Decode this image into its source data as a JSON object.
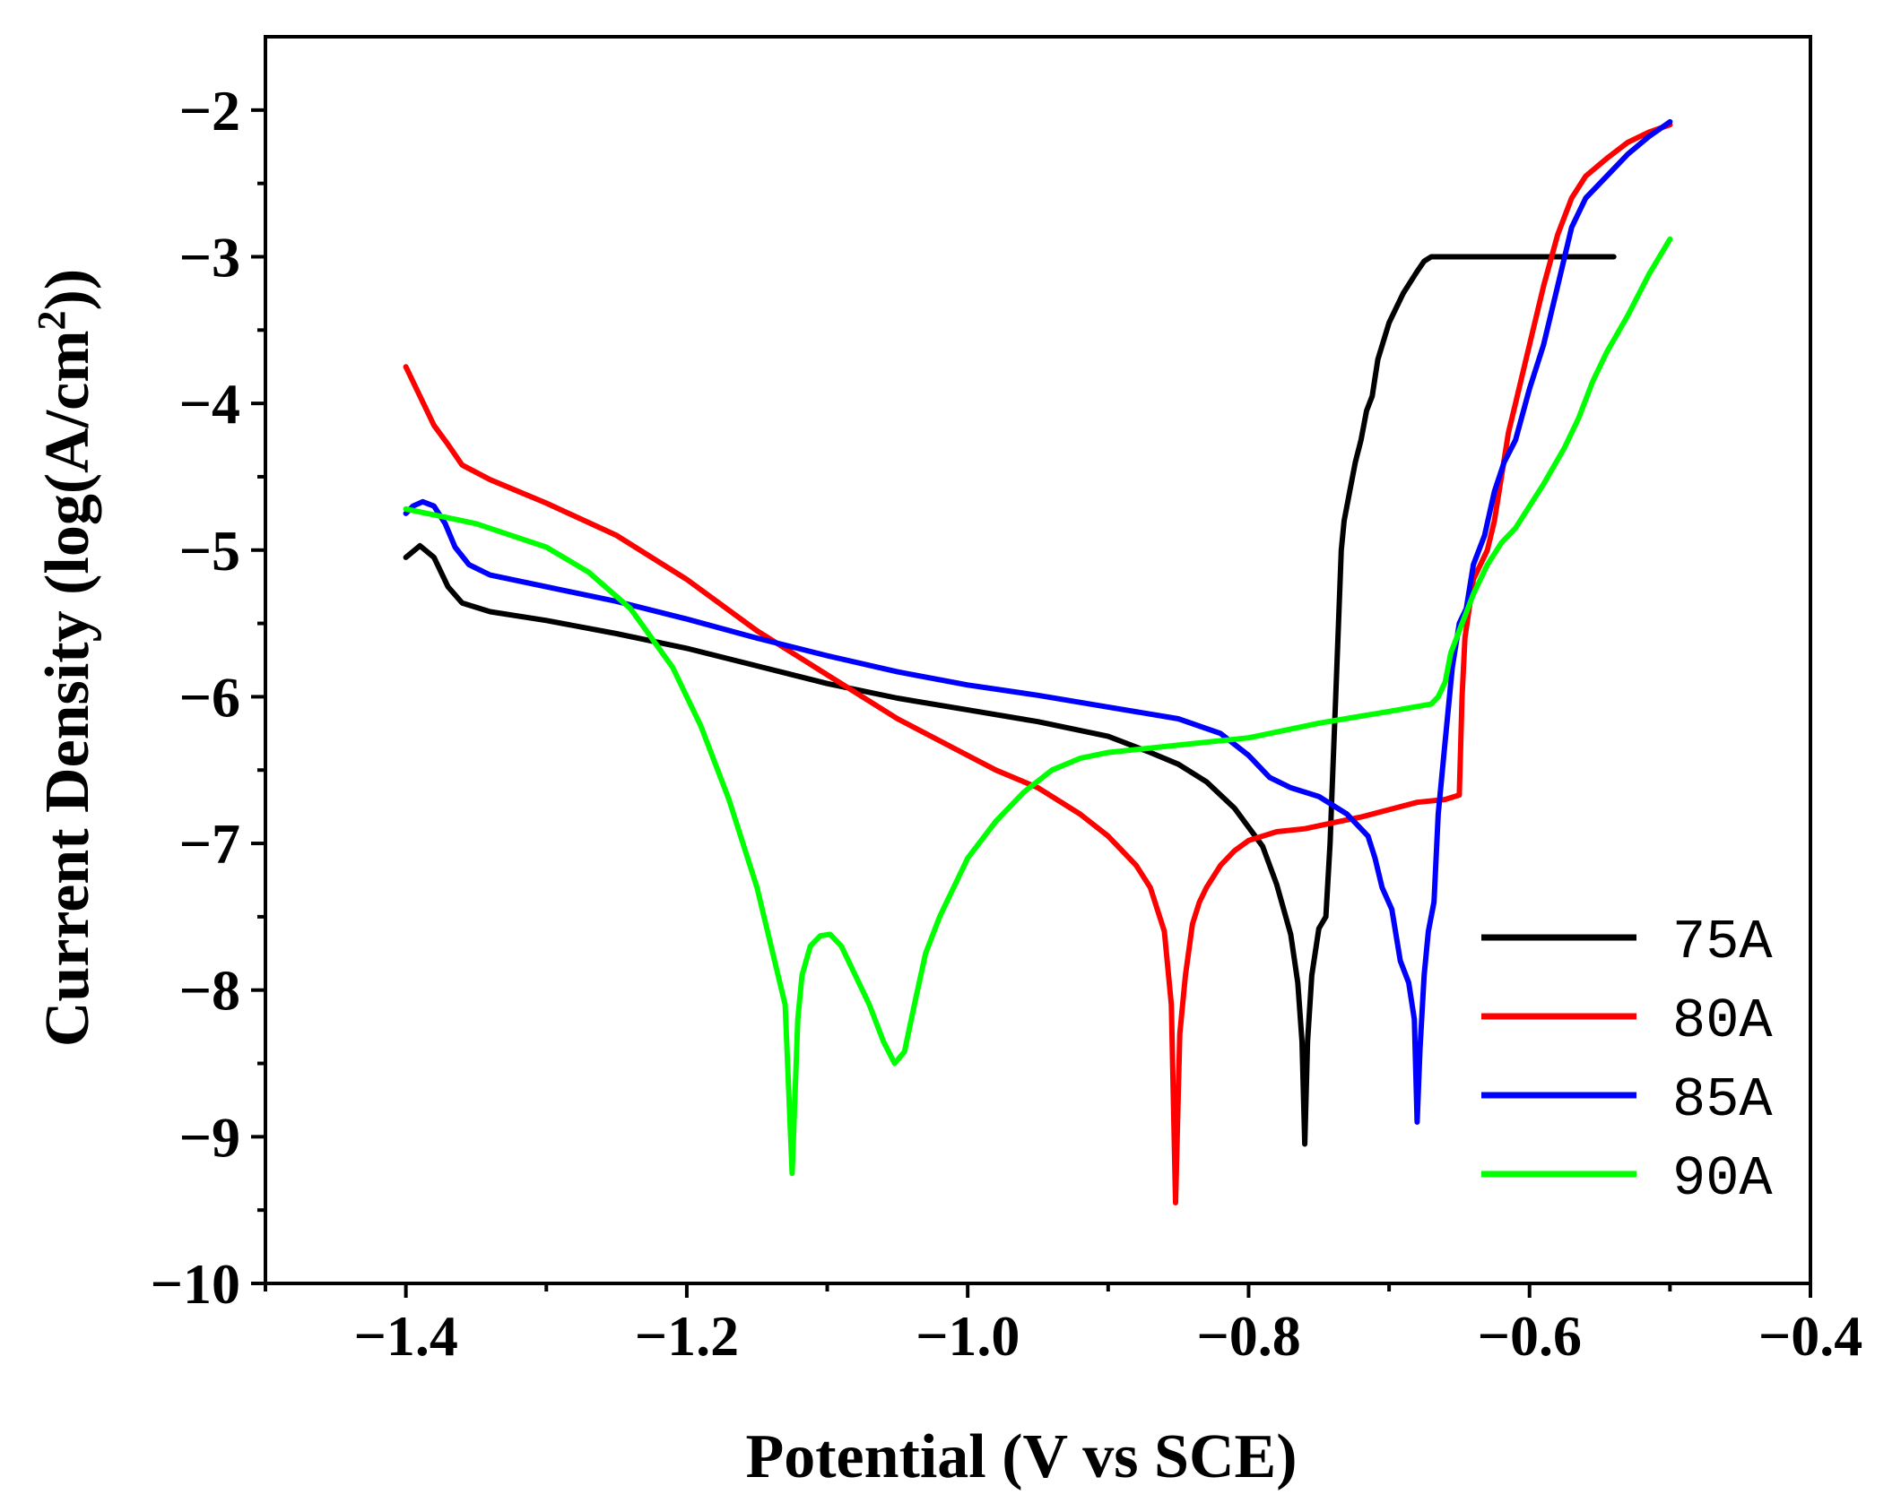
{
  "chart_data": {
    "type": "line",
    "title": "",
    "xlabel": "Potential (V vs SCE)",
    "ylabel": "Current Density (log(A/cm²))",
    "ylabel_parts": {
      "prefix": "Current Density (log(A/cm",
      "superscript": "2",
      "suffix": "))"
    },
    "xlim": [
      -1.5,
      -0.4
    ],
    "ylim": [
      -10,
      -1.5
    ],
    "x_major_ticks": [
      -1.4,
      -1.2,
      -1.0,
      -0.8,
      -0.6,
      -0.4
    ],
    "x_tick_labels": [
      "−1.4",
      "−1.2",
      "−1.0",
      "−0.8",
      "−0.6",
      "−0.4"
    ],
    "x_minor_ticks": [
      -1.5,
      -1.3,
      -1.1,
      -0.9,
      -0.7,
      -0.5
    ],
    "y_major_ticks": [
      -10,
      -9,
      -8,
      -7,
      -6,
      -5,
      -4,
      -3,
      -2
    ],
    "y_tick_labels": [
      "−10",
      "−9",
      "−8",
      "−7",
      "−6",
      "−5",
      "−4",
      "−3",
      "−2"
    ],
    "y_minor_ticks": [
      -9.5,
      -8.5,
      -7.5,
      -6.5,
      -5.5,
      -4.5,
      -3.5,
      -2.5
    ],
    "grid": false,
    "legend_position": "bottom-right",
    "series": [
      {
        "name": "75A",
        "color": "#000000",
        "points": [
          [
            -1.4,
            -5.05
          ],
          [
            -1.39,
            -4.97
          ],
          [
            -1.38,
            -5.05
          ],
          [
            -1.37,
            -5.25
          ],
          [
            -1.36,
            -5.36
          ],
          [
            -1.34,
            -5.42
          ],
          [
            -1.3,
            -5.48
          ],
          [
            -1.25,
            -5.57
          ],
          [
            -1.2,
            -5.67
          ],
          [
            -1.15,
            -5.79
          ],
          [
            -1.1,
            -5.91
          ],
          [
            -1.05,
            -6.01
          ],
          [
            -1.0,
            -6.09
          ],
          [
            -0.95,
            -6.17
          ],
          [
            -0.9,
            -6.27
          ],
          [
            -0.87,
            -6.38
          ],
          [
            -0.85,
            -6.46
          ],
          [
            -0.83,
            -6.58
          ],
          [
            -0.81,
            -6.76
          ],
          [
            -0.79,
            -7.02
          ],
          [
            -0.78,
            -7.28
          ],
          [
            -0.77,
            -7.62
          ],
          [
            -0.765,
            -7.95
          ],
          [
            -0.762,
            -8.35
          ],
          [
            -0.76,
            -9.05
          ],
          [
            -0.758,
            -8.35
          ],
          [
            -0.755,
            -7.9
          ],
          [
            -0.75,
            -7.58
          ],
          [
            -0.745,
            -7.5
          ],
          [
            -0.742,
            -7.0
          ],
          [
            -0.74,
            -6.5
          ],
          [
            -0.738,
            -6.0
          ],
          [
            -0.736,
            -5.5
          ],
          [
            -0.734,
            -5.0
          ],
          [
            -0.732,
            -4.8
          ],
          [
            -0.728,
            -4.6
          ],
          [
            -0.724,
            -4.4
          ],
          [
            -0.72,
            -4.25
          ],
          [
            -0.716,
            -4.05
          ],
          [
            -0.712,
            -3.95
          ],
          [
            -0.708,
            -3.7
          ],
          [
            -0.7,
            -3.45
          ],
          [
            -0.69,
            -3.25
          ],
          [
            -0.68,
            -3.1
          ],
          [
            -0.675,
            -3.03
          ],
          [
            -0.67,
            -3.0
          ],
          [
            -0.6,
            -3.0
          ],
          [
            -0.54,
            -3.0
          ]
        ]
      },
      {
        "name": "80A",
        "color": "#ff0000",
        "points": [
          [
            -1.4,
            -3.75
          ],
          [
            -1.39,
            -3.95
          ],
          [
            -1.38,
            -4.15
          ],
          [
            -1.37,
            -4.28
          ],
          [
            -1.36,
            -4.42
          ],
          [
            -1.34,
            -4.52
          ],
          [
            -1.3,
            -4.68
          ],
          [
            -1.25,
            -4.9
          ],
          [
            -1.2,
            -5.2
          ],
          [
            -1.15,
            -5.55
          ],
          [
            -1.1,
            -5.85
          ],
          [
            -1.05,
            -6.15
          ],
          [
            -1.0,
            -6.4
          ],
          [
            -0.98,
            -6.5
          ],
          [
            -0.95,
            -6.62
          ],
          [
            -0.92,
            -6.8
          ],
          [
            -0.9,
            -6.95
          ],
          [
            -0.88,
            -7.15
          ],
          [
            -0.87,
            -7.3
          ],
          [
            -0.86,
            -7.6
          ],
          [
            -0.855,
            -8.1
          ],
          [
            -0.852,
            -9.45
          ],
          [
            -0.849,
            -8.3
          ],
          [
            -0.845,
            -7.9
          ],
          [
            -0.84,
            -7.55
          ],
          [
            -0.835,
            -7.4
          ],
          [
            -0.83,
            -7.3
          ],
          [
            -0.82,
            -7.15
          ],
          [
            -0.81,
            -7.05
          ],
          [
            -0.8,
            -6.98
          ],
          [
            -0.78,
            -6.92
          ],
          [
            -0.76,
            -6.9
          ],
          [
            -0.74,
            -6.86
          ],
          [
            -0.72,
            -6.82
          ],
          [
            -0.7,
            -6.77
          ],
          [
            -0.68,
            -6.72
          ],
          [
            -0.66,
            -6.7
          ],
          [
            -0.65,
            -6.67
          ],
          [
            -0.648,
            -6.0
          ],
          [
            -0.646,
            -5.6
          ],
          [
            -0.64,
            -5.2
          ],
          [
            -0.63,
            -5.0
          ],
          [
            -0.625,
            -4.8
          ],
          [
            -0.62,
            -4.5
          ],
          [
            -0.615,
            -4.2
          ],
          [
            -0.61,
            -4.0
          ],
          [
            -0.6,
            -3.6
          ],
          [
            -0.59,
            -3.2
          ],
          [
            -0.58,
            -2.85
          ],
          [
            -0.57,
            -2.6
          ],
          [
            -0.56,
            -2.45
          ],
          [
            -0.545,
            -2.33
          ],
          [
            -0.53,
            -2.22
          ],
          [
            -0.515,
            -2.15
          ],
          [
            -0.5,
            -2.1
          ]
        ]
      },
      {
        "name": "85A",
        "color": "#0000ff",
        "points": [
          [
            -1.4,
            -4.75
          ],
          [
            -1.395,
            -4.7
          ],
          [
            -1.388,
            -4.67
          ],
          [
            -1.38,
            -4.7
          ],
          [
            -1.372,
            -4.82
          ],
          [
            -1.365,
            -4.98
          ],
          [
            -1.355,
            -5.1
          ],
          [
            -1.34,
            -5.17
          ],
          [
            -1.3,
            -5.25
          ],
          [
            -1.25,
            -5.35
          ],
          [
            -1.2,
            -5.47
          ],
          [
            -1.15,
            -5.6
          ],
          [
            -1.1,
            -5.72
          ],
          [
            -1.05,
            -5.83
          ],
          [
            -1.0,
            -5.92
          ],
          [
            -0.95,
            -5.99
          ],
          [
            -0.9,
            -6.07
          ],
          [
            -0.85,
            -6.15
          ],
          [
            -0.82,
            -6.25
          ],
          [
            -0.8,
            -6.4
          ],
          [
            -0.785,
            -6.55
          ],
          [
            -0.77,
            -6.62
          ],
          [
            -0.75,
            -6.68
          ],
          [
            -0.73,
            -6.8
          ],
          [
            -0.715,
            -6.95
          ],
          [
            -0.71,
            -7.1
          ],
          [
            -0.705,
            -7.3
          ],
          [
            -0.698,
            -7.45
          ],
          [
            -0.692,
            -7.8
          ],
          [
            -0.686,
            -7.95
          ],
          [
            -0.682,
            -8.2
          ],
          [
            -0.68,
            -8.9
          ],
          [
            -0.678,
            -8.4
          ],
          [
            -0.675,
            -7.9
          ],
          [
            -0.672,
            -7.6
          ],
          [
            -0.668,
            -7.4
          ],
          [
            -0.665,
            -6.8
          ],
          [
            -0.66,
            -6.3
          ],
          [
            -0.655,
            -5.8
          ],
          [
            -0.65,
            -5.5
          ],
          [
            -0.645,
            -5.4
          ],
          [
            -0.64,
            -5.1
          ],
          [
            -0.632,
            -4.9
          ],
          [
            -0.625,
            -4.6
          ],
          [
            -0.618,
            -4.4
          ],
          [
            -0.61,
            -4.25
          ],
          [
            -0.6,
            -3.9
          ],
          [
            -0.59,
            -3.6
          ],
          [
            -0.58,
            -3.2
          ],
          [
            -0.57,
            -2.8
          ],
          [
            -0.56,
            -2.6
          ],
          [
            -0.545,
            -2.45
          ],
          [
            -0.53,
            -2.3
          ],
          [
            -0.515,
            -2.18
          ],
          [
            -0.5,
            -2.08
          ]
        ]
      },
      {
        "name": "90A",
        "color": "#00ff00",
        "points": [
          [
            -1.4,
            -4.72
          ],
          [
            -1.35,
            -4.82
          ],
          [
            -1.3,
            -4.98
          ],
          [
            -1.27,
            -5.15
          ],
          [
            -1.24,
            -5.4
          ],
          [
            -1.21,
            -5.8
          ],
          [
            -1.19,
            -6.2
          ],
          [
            -1.17,
            -6.7
          ],
          [
            -1.15,
            -7.3
          ],
          [
            -1.14,
            -7.7
          ],
          [
            -1.13,
            -8.1
          ],
          [
            -1.125,
            -9.25
          ],
          [
            -1.121,
            -8.2
          ],
          [
            -1.118,
            -7.9
          ],
          [
            -1.112,
            -7.7
          ],
          [
            -1.105,
            -7.63
          ],
          [
            -1.098,
            -7.62
          ],
          [
            -1.09,
            -7.7
          ],
          [
            -1.08,
            -7.9
          ],
          [
            -1.07,
            -8.1
          ],
          [
            -1.06,
            -8.35
          ],
          [
            -1.052,
            -8.5
          ],
          [
            -1.045,
            -8.42
          ],
          [
            -1.038,
            -8.1
          ],
          [
            -1.03,
            -7.75
          ],
          [
            -1.02,
            -7.5
          ],
          [
            -1.0,
            -7.1
          ],
          [
            -0.98,
            -6.85
          ],
          [
            -0.96,
            -6.65
          ],
          [
            -0.94,
            -6.5
          ],
          [
            -0.92,
            -6.42
          ],
          [
            -0.9,
            -6.38
          ],
          [
            -0.85,
            -6.33
          ],
          [
            -0.8,
            -6.28
          ],
          [
            -0.75,
            -6.18
          ],
          [
            -0.7,
            -6.1
          ],
          [
            -0.67,
            -6.05
          ],
          [
            -0.665,
            -6.0
          ],
          [
            -0.66,
            -5.9
          ],
          [
            -0.656,
            -5.7
          ],
          [
            -0.65,
            -5.55
          ],
          [
            -0.64,
            -5.3
          ],
          [
            -0.63,
            -5.1
          ],
          [
            -0.62,
            -4.95
          ],
          [
            -0.61,
            -4.85
          ],
          [
            -0.6,
            -4.7
          ],
          [
            -0.59,
            -4.55
          ],
          [
            -0.575,
            -4.3
          ],
          [
            -0.565,
            -4.1
          ],
          [
            -0.555,
            -3.85
          ],
          [
            -0.545,
            -3.65
          ],
          [
            -0.53,
            -3.4
          ],
          [
            -0.515,
            -3.12
          ],
          [
            -0.5,
            -2.88
          ]
        ]
      }
    ]
  }
}
